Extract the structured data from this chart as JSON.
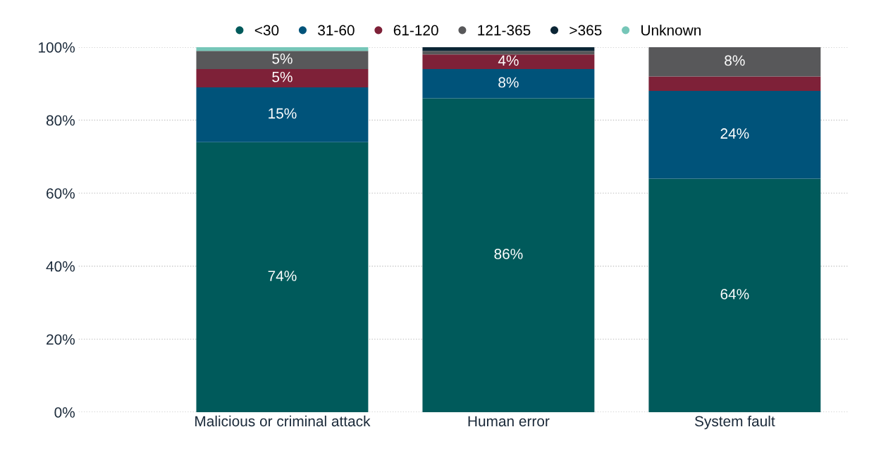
{
  "chart_data": {
    "type": "bar",
    "stacked": true,
    "categories": [
      "Malicious or criminal attack",
      "Human error",
      "System fault"
    ],
    "series": [
      {
        "name": "<30",
        "color": "#005a5b",
        "values": [
          74,
          86,
          64
        ],
        "value_labels": [
          "74%",
          "86%",
          "64%"
        ]
      },
      {
        "name": "31-60",
        "color": "#00537a",
        "values": [
          15,
          8,
          24
        ],
        "value_labels": [
          "15%",
          "8%",
          "24%"
        ]
      },
      {
        "name": "61-120",
        "color": "#7e2138",
        "values": [
          5,
          4,
          4
        ],
        "value_labels": [
          "5%",
          "4%",
          null
        ]
      },
      {
        "name": "121-365",
        "color": "#58585a",
        "values": [
          5,
          1,
          8
        ],
        "value_labels": [
          "5%",
          null,
          "8%"
        ]
      },
      {
        "name": ">365",
        "color": "#0b2535",
        "values": [
          0,
          1,
          0
        ]
      },
      {
        "name": "Unknown",
        "color": "#76c6b8",
        "values": [
          1,
          0,
          0
        ]
      }
    ],
    "ylim": [
      0,
      100
    ],
    "yticks": [
      {
        "value": 0,
        "label": "0%"
      },
      {
        "value": 20,
        "label": "20%"
      },
      {
        "value": 40,
        "label": "40%"
      },
      {
        "value": 60,
        "label": "60%"
      },
      {
        "value": 80,
        "label": "80%"
      },
      {
        "value": 100,
        "label": "100%"
      }
    ],
    "grid": "y",
    "legend": "top"
  }
}
